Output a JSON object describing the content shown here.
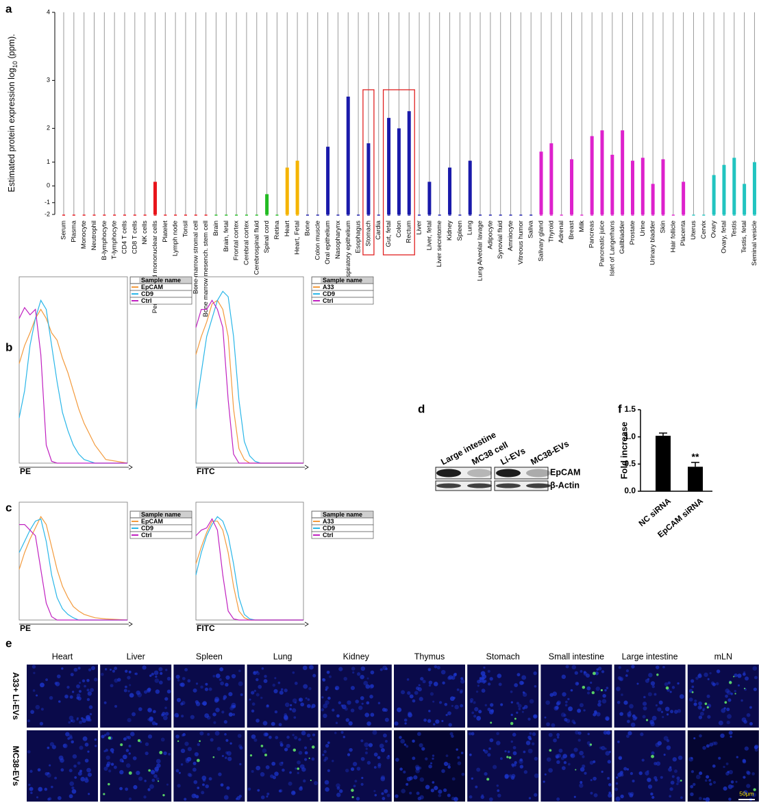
{
  "panel_labels": [
    "a",
    "b",
    "c",
    "d",
    "e",
    "f"
  ],
  "chart_data": [
    {
      "type": "bar",
      "ylabel": [
        "Estimated protein expression log",
        "10",
        " (ppm)."
      ],
      "categories": [
        "Serum",
        "Plasma",
        "Monocyte",
        "Neutrophil",
        "B-lymphocyte",
        "T-lymphocyte",
        "CD4 T cells",
        "CD8 T cells",
        "NK cells",
        "Periph. blood mononuclear cells",
        "Platelet",
        "Lymph node",
        "Tonsil",
        "Bone marrow stromal cell",
        "Bone marrow mesench. stem cell",
        "Brain",
        "Brain, fetal",
        "Frontal cortex",
        "Cerebral cortex",
        "Cerebrospinal fluid",
        "Spinal cord",
        "Retina",
        "Heart",
        "Heart, Fetal",
        "Bone",
        "Colon muscle",
        "Oral epithelium",
        "Nasopharynx",
        "Nasal respiratory epithelium",
        "Esophagus",
        "Stomach",
        "Cardia",
        "Gut, fetal",
        "Colon",
        "Rectum",
        "Liver",
        "Liver, fetal",
        "Liver secretome",
        "Kidney",
        "Spleen",
        "Lung",
        "Lung Alveolar lavage",
        "Adipocyte",
        "Synovial fluid",
        "Amniocyte",
        "Vitreous humor",
        "Saliva",
        "Salivary gland",
        "Thyroid",
        "Adrenal",
        "Breast",
        "Milk",
        "Pancreas",
        "Pancreatic juice",
        "Islet of Langerhans",
        "Gallbladder",
        "Prostate",
        "Urine",
        "Urinary bladder",
        "Skin",
        "Hair follicle",
        "Placenta",
        "Uterus",
        "Cervix",
        "Ovary",
        "Ovary, fetal",
        "Testis",
        "Testis, fetal",
        "Seminal vesicle"
      ],
      "values": [
        null,
        null,
        null,
        null,
        null,
        null,
        null,
        null,
        null,
        0.2,
        null,
        null,
        null,
        null,
        null,
        null,
        null,
        null,
        null,
        null,
        -0.45,
        null,
        0.8,
        1.05,
        null,
        null,
        1.5,
        null,
        2.7,
        null,
        1.6,
        null,
        2.25,
        2.0,
        2.4,
        null,
        0.2,
        null,
        0.8,
        null,
        1.05,
        null,
        null,
        null,
        null,
        null,
        null,
        1.35,
        1.6,
        null,
        1.1,
        null,
        1.8,
        1.95,
        1.25,
        1.95,
        1.05,
        1.15,
        0.1,
        1.1,
        null,
        0.2,
        null,
        null,
        0.5,
        0.9,
        1.15,
        0.1,
        1.0
      ],
      "colors": [
        "#e8141a",
        "#e8141a",
        "#e8141a",
        "#e8141a",
        "#e8141a",
        "#e8141a",
        "#e8141a",
        "#e8141a",
        "#e8141a",
        "#e8141a",
        "#e8141a",
        "#e8141a",
        "#e8141a",
        "#e8141a",
        "#e8141a",
        "#22bb22",
        "#22bb22",
        "#22bb22",
        "#22bb22",
        "#22bb22",
        "#22bb22",
        "#22bb22",
        "#f5b400",
        "#f5b400",
        "#1a1aaa",
        "#1a1aaa",
        "#1a1aaa",
        "#1a1aaa",
        "#1a1aaa",
        "#1a1aaa",
        "#1a1aaa",
        "#1a1aaa",
        "#1a1aaa",
        "#1a1aaa",
        "#1a1aaa",
        "#1a1aaa",
        "#1a1aaa",
        "#1a1aaa",
        "#1a1aaa",
        "#1a1aaa",
        "#1a1aaa",
        "#1a1aaa",
        "#1a1aaa",
        "#1a1aaa",
        "#1a1aaa",
        "#1a1aaa",
        "#1a1aaa",
        "#dd22cc",
        "#dd22cc",
        "#dd22cc",
        "#dd22cc",
        "#dd22cc",
        "#dd22cc",
        "#dd22cc",
        "#dd22cc",
        "#dd22cc",
        "#dd22cc",
        "#dd22cc",
        "#dd22cc",
        "#dd22cc",
        "#dd22cc",
        "#dd22cc",
        "#22c4c0",
        "#22c4c0",
        "#22c4c0",
        "#22c4c0",
        "#22c4c0",
        "#22c4c0",
        "#22c4c0"
      ],
      "ylim": [
        -2,
        4
      ],
      "yticks": [
        4,
        3,
        2,
        1,
        0,
        -1,
        -2
      ],
      "grid": true
    },
    {
      "type": "line",
      "xlabel": "PE",
      "legend_title": "Sample name",
      "x": [
        0,
        5,
        10,
        15,
        20,
        25,
        30,
        35,
        40,
        45,
        50,
        55,
        60,
        70,
        80,
        100
      ],
      "xlim": [
        0,
        100
      ],
      "ylim": [
        0,
        100
      ],
      "series": [
        {
          "name": "EpCAM",
          "color": "#f39a3c",
          "values": [
            55,
            65,
            72,
            80,
            85,
            80,
            72,
            68,
            58,
            50,
            40,
            30,
            22,
            10,
            2,
            0
          ]
        },
        {
          "name": "CD9",
          "color": "#29b6e8",
          "values": [
            25,
            40,
            65,
            80,
            90,
            85,
            65,
            45,
            28,
            18,
            10,
            5,
            2,
            0,
            0,
            0
          ]
        },
        {
          "name": "Ctrl",
          "color": "#c020c0",
          "values": [
            80,
            86,
            82,
            85,
            60,
            10,
            1,
            0,
            0,
            0,
            0,
            0,
            0,
            0,
            0,
            0
          ]
        }
      ]
    },
    {
      "type": "line",
      "xlabel": "FITC",
      "legend_title": "Sample name",
      "x": [
        0,
        5,
        10,
        15,
        20,
        25,
        30,
        35,
        40,
        45,
        50,
        55,
        60,
        70,
        80,
        100
      ],
      "xlim": [
        0,
        100
      ],
      "ylim": [
        0,
        100
      ],
      "series": [
        {
          "name": "A33",
          "color": "#f39a3c",
          "values": [
            60,
            70,
            78,
            88,
            90,
            85,
            70,
            30,
            8,
            2,
            0,
            0,
            0,
            0,
            0,
            0
          ]
        },
        {
          "name": "CD9",
          "color": "#29b6e8",
          "values": [
            30,
            50,
            70,
            80,
            90,
            95,
            92,
            70,
            35,
            12,
            4,
            1,
            0,
            0,
            0,
            0
          ]
        },
        {
          "name": "Ctrl",
          "color": "#c020c0",
          "values": [
            75,
            85,
            85,
            90,
            85,
            75,
            35,
            5,
            0,
            0,
            0,
            0,
            0,
            0,
            0,
            0
          ]
        }
      ]
    },
    {
      "type": "line",
      "xlabel": "PE",
      "legend_title": "Sample name",
      "x": [
        0,
        5,
        10,
        15,
        20,
        25,
        30,
        35,
        40,
        45,
        50,
        55,
        60,
        70,
        80,
        100
      ],
      "xlim": [
        0,
        100
      ],
      "ylim": [
        0,
        100
      ],
      "series": [
        {
          "name": "EpCAM",
          "color": "#f39a3c",
          "values": [
            45,
            60,
            72,
            82,
            92,
            85,
            65,
            45,
            30,
            20,
            12,
            8,
            5,
            2,
            1,
            0
          ]
        },
        {
          "name": "CD9",
          "color": "#29b6e8",
          "values": [
            60,
            70,
            80,
            88,
            90,
            70,
            40,
            20,
            10,
            5,
            2,
            0,
            0,
            0,
            0,
            0
          ]
        },
        {
          "name": "Ctrl",
          "color": "#c020c0",
          "values": [
            85,
            85,
            80,
            75,
            45,
            15,
            3,
            0,
            0,
            0,
            0,
            0,
            0,
            0,
            0,
            0
          ]
        }
      ]
    },
    {
      "type": "line",
      "xlabel": "FITC",
      "legend_title": "Sample name",
      "x": [
        0,
        5,
        10,
        15,
        20,
        25,
        30,
        35,
        40,
        45,
        50,
        55,
        60,
        70,
        80,
        100
      ],
      "xlim": [
        0,
        100
      ],
      "ylim": [
        0,
        100
      ],
      "series": [
        {
          "name": "A33",
          "color": "#f39a3c",
          "values": [
            50,
            65,
            78,
            88,
            88,
            80,
            60,
            30,
            8,
            2,
            0,
            0,
            0,
            0,
            0,
            0
          ]
        },
        {
          "name": "CD9",
          "color": "#29b6e8",
          "values": [
            40,
            60,
            75,
            85,
            92,
            88,
            75,
            50,
            20,
            5,
            1,
            0,
            0,
            0,
            0,
            0
          ]
        },
        {
          "name": "Ctrl",
          "color": "#c020c0",
          "values": [
            75,
            80,
            82,
            90,
            80,
            40,
            8,
            1,
            0,
            0,
            0,
            0,
            0,
            0,
            0,
            0
          ]
        }
      ]
    },
    {
      "type": "bar",
      "ylabel": "Fold increase",
      "categories": [
        "NC siRNA",
        "EpCAM siRNA"
      ],
      "values": [
        1.02,
        0.45
      ],
      "errors": [
        0.05,
        0.08
      ],
      "color": "#000000",
      "ylim": [
        0,
        1.5
      ],
      "yticks": [
        {
          "value": 0,
          "label": "0.0"
        },
        {
          "value": 0.5,
          "label": "0.5"
        },
        {
          "value": 1,
          "label": "1.0"
        },
        {
          "value": 1.5,
          "label": "1.5"
        }
      ],
      "annotations": [
        "**"
      ]
    }
  ],
  "blot": {
    "lanes": [
      "Large intestine",
      "MC38 cell",
      "Li-EVs",
      "MC38-EVs"
    ],
    "proteins": [
      "EpCAM",
      "β-Actin"
    ]
  },
  "micrographs": {
    "columns": [
      "Heart",
      "Liver",
      "Spleen",
      "Lung",
      "Kidney",
      "Thymus",
      "Stomach",
      "Small intestine",
      "Large intestine",
      "mLN"
    ],
    "rows": [
      "A33+ Li-EVs",
      "MC38-EVs"
    ],
    "scale_bar": "50μm"
  }
}
